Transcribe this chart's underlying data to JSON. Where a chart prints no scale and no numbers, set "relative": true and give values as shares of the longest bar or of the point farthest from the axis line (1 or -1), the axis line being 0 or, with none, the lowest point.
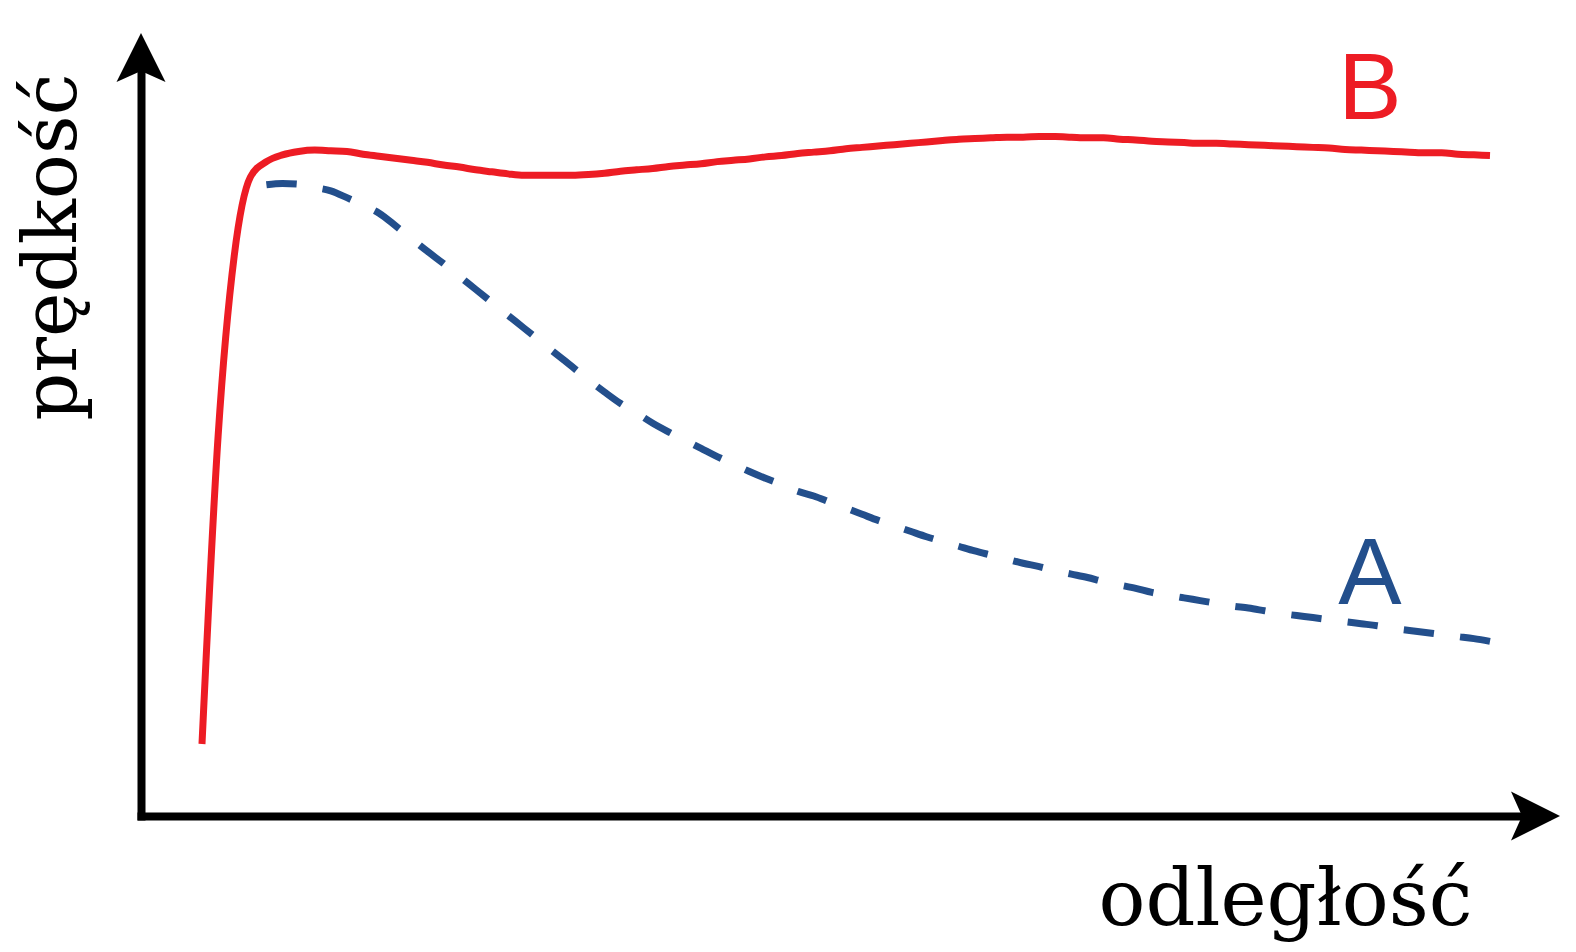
{
  "chart_data": {
    "type": "line",
    "xlabel": "odległość",
    "ylabel": "prędkość",
    "relative": true,
    "categories": [
      null,
      null,
      null,
      null,
      null,
      null,
      null,
      null,
      null,
      null,
      null,
      null,
      null,
      null,
      null,
      null,
      null,
      null,
      null,
      null,
      null,
      null,
      null,
      null,
      null,
      null,
      null,
      null,
      null,
      null,
      null,
      null,
      null,
      null,
      null,
      null,
      null,
      null,
      null,
      null,
      null,
      null,
      null,
      null,
      null,
      null,
      null,
      null,
      null,
      null,
      null,
      null,
      null,
      null,
      null,
      null,
      null,
      null,
      null,
      null,
      null,
      null,
      null,
      null,
      null,
      null,
      null,
      null,
      null,
      null,
      null,
      null,
      null,
      null,
      null,
      null,
      null,
      null,
      null,
      null,
      null
    ],
    "series": [
      {
        "name": "B",
        "color": "#ed1c24",
        "line_style": "solid",
        "values": [
          0.106,
          0.559,
          0.824,
          0.94,
          0.963,
          0.973,
          0.978,
          0.98,
          0.979,
          0.978,
          0.974,
          0.971,
          0.968,
          0.965,
          0.962,
          0.958,
          0.955,
          0.951,
          0.948,
          0.945,
          0.943,
          0.943,
          0.943,
          0.943,
          0.944,
          0.946,
          0.949,
          0.951,
          0.953,
          0.956,
          0.958,
          0.96,
          0.963,
          0.965,
          0.967,
          0.97,
          0.972,
          0.975,
          0.977,
          0.979,
          0.982,
          0.984,
          0.986,
          0.988,
          0.99,
          0.992,
          0.994,
          0.996,
          0.997,
          0.998,
          0.999,
          0.999,
          1,
          1,
          0.999,
          0.998,
          0.998,
          0.996,
          0.995,
          0.993,
          0.992,
          0.991,
          0.99,
          0.99,
          0.989,
          0.988,
          0.987,
          0.986,
          0.985,
          0.984,
          0.983,
          0.981,
          0.98,
          0.979,
          0.978,
          0.977,
          0.976,
          0.976,
          0.974,
          0.973,
          0.972
        ]
      },
      {
        "name": "A",
        "color": "#234f8c",
        "line_style": "dashed",
        "values": [
          null,
          null,
          null,
          null,
          0.929,
          0.931,
          0.93,
          0.925,
          0.92,
          0.91,
          0.899,
          0.887,
          0.869,
          0.85,
          0.831,
          0.813,
          0.794,
          0.775,
          0.756,
          0.737,
          0.718,
          0.699,
          0.68,
          0.661,
          0.642,
          0.624,
          0.607,
          0.593,
          0.578,
          0.565,
          0.553,
          0.541,
          0.529,
          0.518,
          0.507,
          0.497,
          0.488,
          0.478,
          0.471,
          0.462,
          0.453,
          0.444,
          0.435,
          0.427,
          0.419,
          0.411,
          0.404,
          0.397,
          0.39,
          0.384,
          0.378,
          0.372,
          0.367,
          0.361,
          0.356,
          0.351,
          0.345,
          0.34,
          0.335,
          0.329,
          0.325,
          0.321,
          0.317,
          0.313,
          0.309,
          0.306,
          0.302,
          0.298,
          0.295,
          0.292,
          0.289,
          0.286,
          0.283,
          0.28,
          0.276,
          0.273,
          0.27,
          0.267,
          0.264,
          0.261,
          0.257
        ]
      }
    ]
  }
}
